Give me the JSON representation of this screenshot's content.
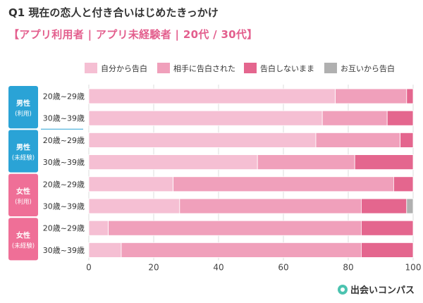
{
  "header": {
    "title": "Q1 現在の恋人と付き合いはじめたきっかけ",
    "subtitle": "【アプリ利用者 | アプリ未経験者 | 20代 / 30代】"
  },
  "brand": {
    "name": "出会いコンパス",
    "icon": "compass-heart-icon"
  },
  "colors": {
    "series": [
      "#f5bfd3",
      "#f0a0bb",
      "#e4668e",
      "#b0b0b0"
    ],
    "group_box": "#2aa3d6",
    "group_box_female": "#ef6f97",
    "grid": "#dddddd",
    "row_band": "#eeeeee"
  },
  "groups": [
    {
      "label": "男性",
      "sub": "(利用)",
      "rows": [
        0,
        1
      ],
      "color_key": "group_box"
    },
    {
      "label": "男性",
      "sub": "(未経験)",
      "rows": [
        2,
        3
      ],
      "color_key": "group_box"
    },
    {
      "label": "女性",
      "sub": "(利用)",
      "rows": [
        4,
        5
      ],
      "color_key": "group_box_female"
    },
    {
      "label": "女性",
      "sub": "(未経験)",
      "rows": [
        6,
        7
      ],
      "color_key": "group_box_female"
    }
  ],
  "chart_data": {
    "type": "bar",
    "orientation": "horizontal",
    "stacked": true,
    "categories": [
      "20歳~29歳",
      "30歳~39歳",
      "20歳~29歳",
      "30歳~39歳",
      "20歳~29歳",
      "30歳~39歳",
      "20歳~29歳",
      "30歳~39歳"
    ],
    "series": [
      {
        "name": "自分から告白",
        "values": [
          76,
          72,
          70,
          52,
          26,
          28,
          6,
          10
        ]
      },
      {
        "name": "相手に告白された",
        "values": [
          22,
          20,
          26,
          30,
          68,
          56,
          78,
          74
        ]
      },
      {
        "name": "告白しないまま",
        "values": [
          2,
          8,
          4,
          18,
          6,
          14,
          16,
          16
        ]
      },
      {
        "name": "お互いから告白",
        "values": [
          0,
          0,
          0,
          0,
          0,
          2,
          0,
          0
        ]
      }
    ],
    "xlim": [
      0,
      100
    ],
    "xticks": [
      "0",
      "20",
      "40",
      "60",
      "80",
      "100"
    ],
    "legend": "top-right",
    "grid": true
  }
}
